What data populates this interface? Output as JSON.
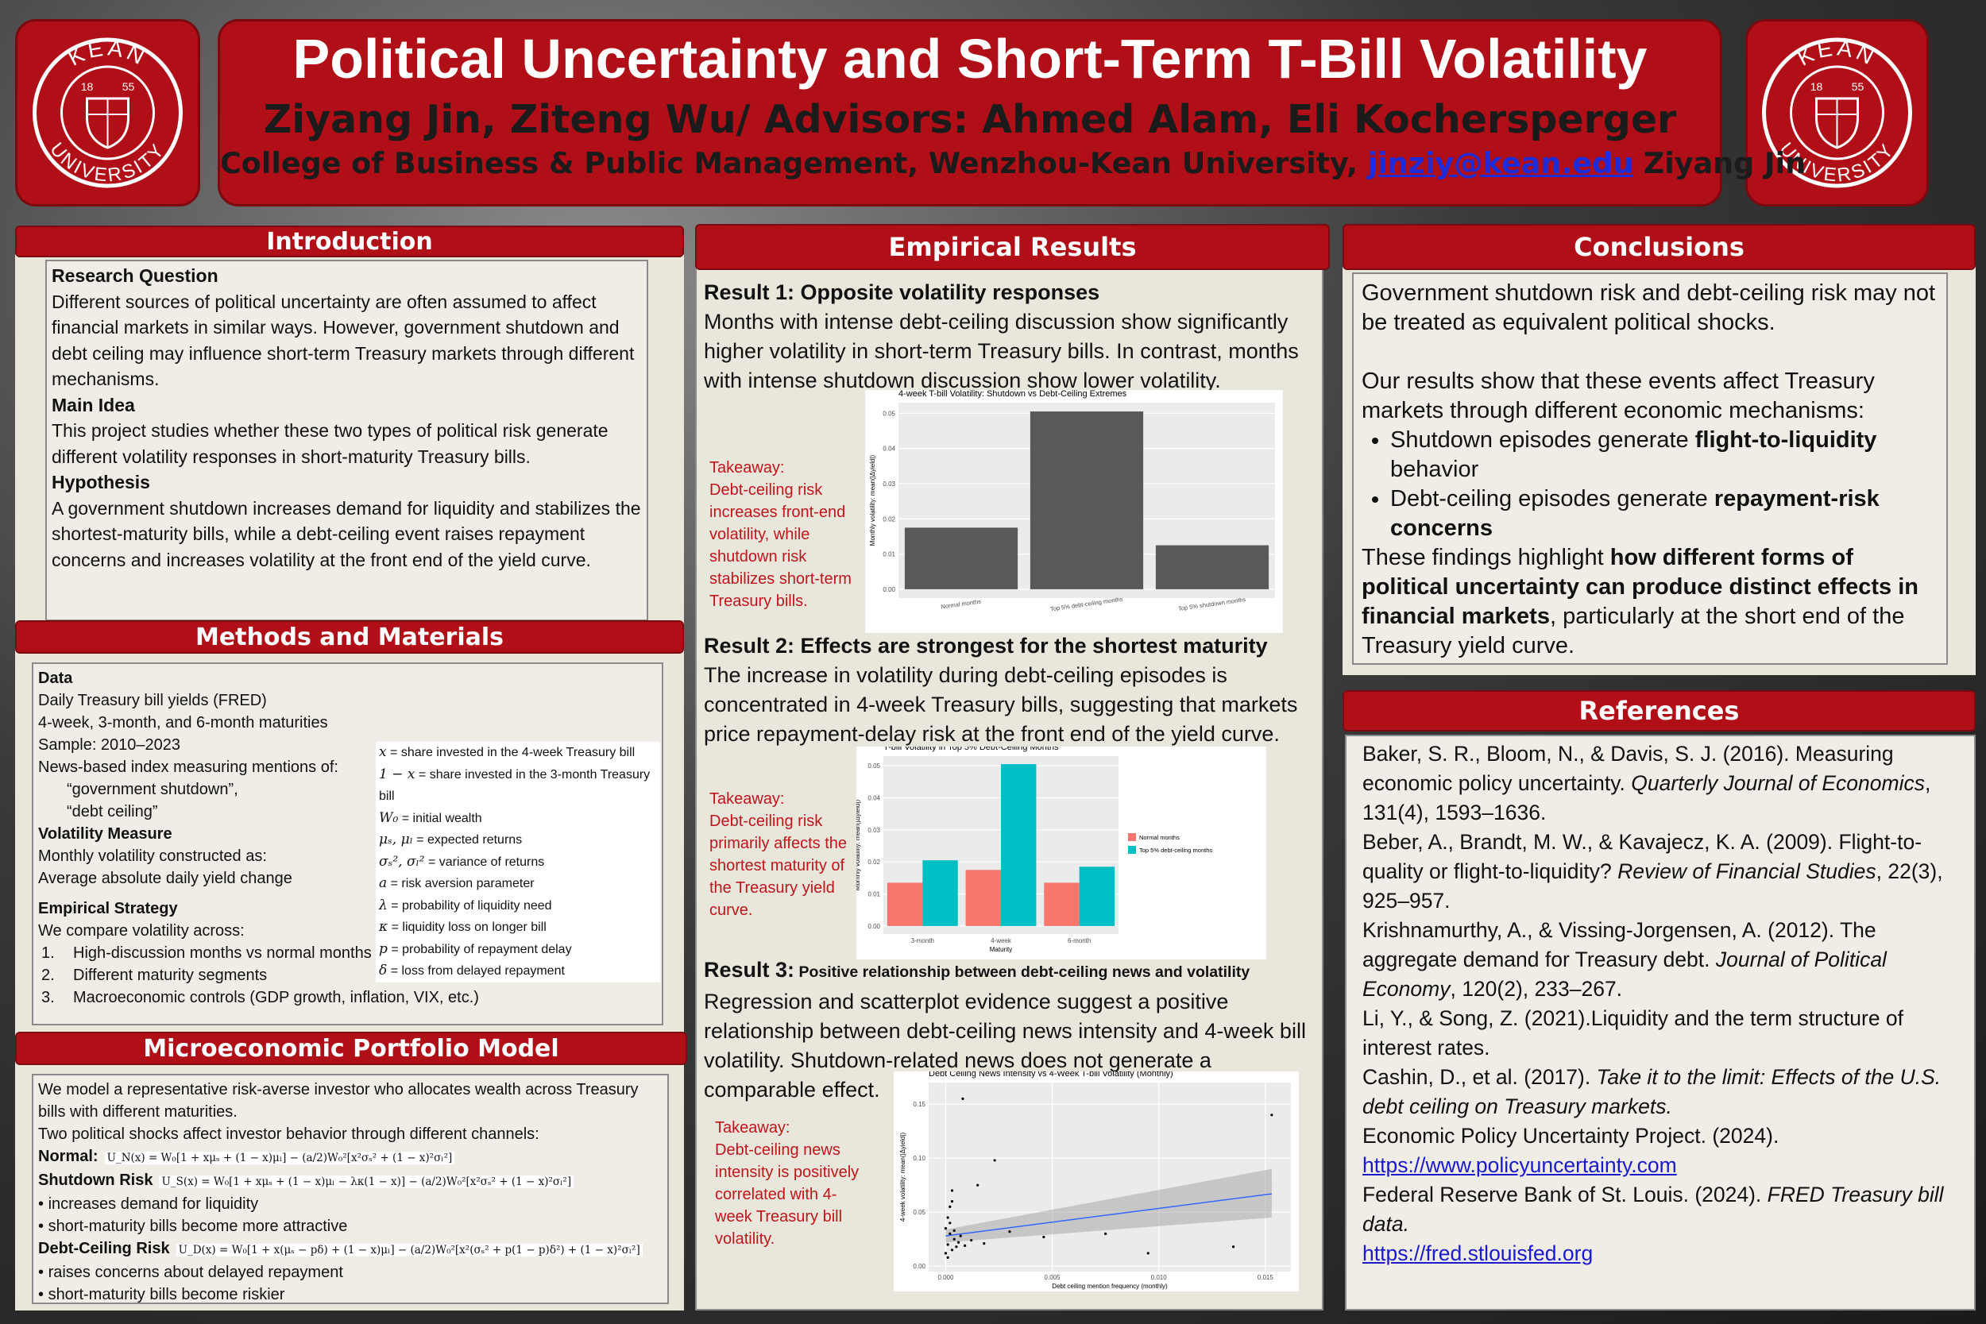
{
  "logo": {
    "top": "KEAN",
    "bottom": "UNIVERSITY",
    "year_left": "18",
    "year_right": "55"
  },
  "header": {
    "title": "Political Uncertainty and Short-Term T-Bill Volatility",
    "authors": "Ziyang Jin, Ziteng Wu/ Advisors: Ahmed Alam, Eli Kochersperger",
    "affiliation": "College of Business & Public Management, Wenzhou-Kean University, ",
    "email": "jinziy@kean.edu",
    "after_email": " Ziyang Jin"
  },
  "introduction": {
    "heading": "Introduction",
    "blocks": [
      {
        "label": "Research Question",
        "text": "Different sources of political uncertainty are often assumed to affect financial markets in similar ways. However, government shutdown and debt ceiling may influence short-term Treasury markets through different mechanisms."
      },
      {
        "label": "Main Idea",
        "text": "This project studies whether these two types of political risk generate different volatility responses in short-maturity Treasury bills."
      },
      {
        "label": "Hypothesis",
        "text": "A government shutdown increases demand for liquidity and stabilizes the shortest-maturity bills, while a debt-ceiling event raises repayment concerns and increases volatility at the front end of the yield curve."
      }
    ]
  },
  "methods": {
    "heading": "Methods and Materials",
    "data_label": "Data",
    "data_lines": [
      "Daily Treasury bill yields (FRED)",
      "4-week, 3-month, and 6-month maturities",
      "Sample: 2010–2023",
      "News-based index measuring mentions of:"
    ],
    "quoted": [
      "“government shutdown”,",
      "“debt ceiling”"
    ],
    "volatility_label": "Volatility Measure",
    "volatility_lines": [
      "Monthly volatility constructed as:",
      "Average absolute daily yield change"
    ],
    "strategy_label": "Empirical Strategy",
    "strategy_intro": "We compare volatility across:",
    "strategy_items": [
      {
        "num": "1.",
        "text": "High-discussion months vs normal months"
      },
      {
        "num": "2.",
        "text": "Different maturity segments"
      },
      {
        "num": "3.",
        "text": "Macroeconomic controls (GDP growth, inflation, VIX, etc.)"
      }
    ],
    "symbols": [
      {
        "sym": "x",
        "def": " = share invested in the 4-week Treasury bill"
      },
      {
        "sym": "1 − x",
        "def": " = share invested in the 3-month Treasury bill"
      },
      {
        "sym": "W₀",
        "def": " = initial wealth"
      },
      {
        "sym": "μₛ, μₗ",
        "def": " = expected returns"
      },
      {
        "sym": "σₛ², σₗ²",
        "def": " = variance of returns"
      },
      {
        "sym": "a",
        "def": " = risk aversion parameter"
      },
      {
        "sym": "λ",
        "def": " = probability of liquidity need"
      },
      {
        "sym": "κ",
        "def": " = liquidity loss on longer bill"
      },
      {
        "sym": "p",
        "def": " = probability of repayment delay"
      },
      {
        "sym": "δ",
        "def": " = loss from delayed repayment"
      }
    ]
  },
  "model": {
    "heading": "Microeconomic Portfolio Model",
    "intro": [
      "We model a representative risk-averse investor who allocates wealth across Treasury bills with different maturities.",
      "Two political shocks affect investor behavior through different channels:"
    ],
    "normal_label": "Normal:",
    "normal_formula": "U_N(x) = W₀[1 + xμₛ + (1 − x)μₗ] − (a/2)W₀²[x²σₛ² + (1 − x)²σₗ²]",
    "shutdown_label": "Shutdown Risk",
    "shutdown_formula": "U_S(x) = W₀[1 + xμₛ + (1 − x)μₗ − λκ(1 − x)] − (a/2)W₀²[x²σₛ² + (1 − x)²σₗ²]",
    "shutdown_bullets": [
      "increases demand for liquidity",
      "short-maturity bills become more attractive"
    ],
    "debt_label": "Debt-Ceiling Risk",
    "debt_formula": "U_D(x) = W₀[1 + x(μₛ − pδ) + (1 − x)μₗ] − (a/2)W₀²[x²(σₛ² + p(1 − p)δ²) + (1 − x)²σₗ²]",
    "debt_bullets": [
      "raises concerns about delayed repayment",
      "short-maturity bills become riskier"
    ]
  },
  "results": {
    "heading": "Empirical Results",
    "result1": {
      "label": "Result 1: Opposite volatility responses",
      "text": "Months with intense debt-ceiling discussion show significantly higher volatility in short-term Treasury bills. In contrast, months with intense shutdown discussion show lower volatility.",
      "takeaway_label": "Takeaway:",
      "takeaway": "Debt-ceiling risk increases front-end volatility, while shutdown risk stabilizes short-term Treasury bills.",
      "chart": {
        "type": "bar",
        "title": "4-week T-bill Volatility: Shutdown vs Debt-Ceiling Extremes",
        "y_label": "Monthly volatility: mean(|Δyield|)",
        "categories": [
          "Normal months",
          "Top 5% debt-ceiling months",
          "Top 5% shutdown months"
        ],
        "values": [
          0.0175,
          0.0505,
          0.0125
        ],
        "color": "#595959",
        "ylim": [
          -0.0025,
          0.053
        ],
        "yticks": [
          {
            "value": 0,
            "label": "0.00"
          },
          0.01,
          0.02,
          0.03,
          0.04,
          0.05
        ]
      }
    },
    "result2": {
      "label": "Result 2: Effects are strongest for the shortest maturity",
      "text": "The increase in volatility during debt-ceiling episodes is concentrated in 4-week Treasury bills, suggesting that markets price repayment-delay risk at the front end of the yield curve.",
      "takeaway_label": "Takeaway:",
      "takeaway": "Debt-ceiling risk primarily affects the shortest maturity of the Treasury yield curve.",
      "chart": {
        "type": "bar",
        "title": "T-bill Volatility in Top 5% Debt-Ceiling Months",
        "x_label": "Maturity",
        "y_label": "Monthly volatility: mean(|Δyield|)",
        "categories": [
          "3-month",
          "4-week",
          "6-month"
        ],
        "series": [
          {
            "name": "Normal months",
            "color": "#F8766D",
            "values": [
              0.0135,
              0.0175,
              0.0135
            ]
          },
          {
            "name": "Top 5% debt-ceiling months",
            "color": "#00BFC4",
            "values": [
              0.0205,
              0.0505,
              0.0185
            ]
          }
        ],
        "ylim": [
          -0.0025,
          0.053
        ],
        "yticks": [
          {
            "value": 0,
            "label": "0.00"
          },
          0.01,
          0.02,
          0.03,
          0.04,
          0.05
        ]
      }
    },
    "result3": {
      "label": "Result 3:",
      "label_rest": " Positive relationship between debt-ceiling news and volatility",
      "text": "Regression and scatterplot evidence suggest a positive relationship between debt-ceiling news intensity and 4-week bill volatility. Shutdown-related news does not generate a comparable effect.",
      "takeaway_label": "Takeaway:",
      "takeaway": "Debt-ceiling news intensity is positively correlated with 4-week Treasury bill volatility.",
      "chart": {
        "type": "scatter",
        "title": "Debt Ceiling News Intensity vs 4-Week T-bill Volatility (Monthly)",
        "x_label": "Debt ceiling mention frequency (monthly)",
        "y_label": "4-week volatility: mean(|Δyield|)",
        "x": [
          0.0,
          0.0001,
          0.0002,
          0.0003,
          0.0001,
          0.0004,
          0.0002,
          0.0005,
          0.0,
          0.0003,
          0.0006,
          0.0001,
          0.0002,
          0.0004,
          0.0007,
          0.0009,
          0.0012,
          0.0015,
          0.0023,
          0.003,
          0.0046,
          0.0075,
          0.0095,
          0.0135,
          0.0153,
          0.0008,
          0.0003,
          0.0018
        ],
        "values": [
          0.012,
          0.02,
          0.03,
          0.015,
          0.045,
          0.025,
          0.055,
          0.018,
          0.035,
          0.06,
          0.022,
          0.008,
          0.04,
          0.033,
          0.028,
          0.019,
          0.024,
          0.075,
          0.098,
          0.032,
          0.027,
          0.03,
          0.012,
          0.018,
          0.14,
          0.155,
          0.07,
          0.021
        ],
        "color": "#000000",
        "trend": {
          "x": [
            0.0,
            0.0153
          ],
          "values": [
            0.028,
            0.067
          ],
          "lower": [
            0.022,
            0.045
          ],
          "upper": [
            0.034,
            0.09
          ],
          "color": "#3366FF"
        },
        "xlim": [
          -0.0008,
          0.0162
        ],
        "xticks": [
          {
            "value": 0,
            "label": "0.000"
          },
          0.005,
          {
            "value": 0.01,
            "label": "0.010"
          },
          0.015
        ],
        "ylim": [
          -0.005,
          0.17
        ],
        "yticks": [
          {
            "value": 0,
            "label": "0.00"
          },
          0.05,
          {
            "value": 0.1,
            "label": "0.10"
          },
          0.15
        ]
      }
    }
  },
  "conclusions": {
    "heading": "Conclusions",
    "blocks": [
      {
        "kind": "p",
        "parts": [
          {
            "text": "Government shutdown risk and debt-ceiling risk may not be treated as equivalent political shocks."
          }
        ]
      },
      {
        "kind": "p",
        "parts": [
          {
            "text": "Our results show that these events affect Treasury markets through different economic mechanisms:"
          }
        ]
      },
      {
        "kind": "ul",
        "items": [
          {
            "parts": [
              {
                "text": "Shutdown episodes generate "
              },
              {
                "text": "flight-to-liquidity",
                "style": "bold"
              },
              {
                "text": " behavior"
              }
            ]
          },
          {
            "parts": [
              {
                "text": "Debt-ceiling episodes generate "
              },
              {
                "text": "repayment-risk concerns",
                "style": "bold"
              }
            ]
          }
        ]
      },
      {
        "kind": "p",
        "parts": [
          {
            "text": "These findings highlight "
          },
          {
            "text": "how different forms of political uncertainty can produce distinct effects in financial markets",
            "style": "bold"
          },
          {
            "text": ", particularly at the short end of the Treasury yield curve."
          }
        ]
      }
    ]
  },
  "references": {
    "heading": "References",
    "items": [
      {
        "parts": [
          {
            "text": "Baker, S. R., Bloom, N., & Davis, S. J. (2016). Measuring economic policy uncertainty. "
          },
          {
            "text": "Quarterly Journal of Economics",
            "style": "italic"
          },
          {
            "text": ", 131(4), 1593–1636."
          }
        ]
      },
      {
        "parts": [
          {
            "text": "Beber, A., Brandt, M. W., & Kavajecz, K. A. (2009). Flight-to-quality or flight-to-liquidity? "
          },
          {
            "text": "Review of Financial Studies",
            "style": "italic"
          },
          {
            "text": ", 22(3), 925–957."
          }
        ]
      },
      {
        "parts": [
          {
            "text": "Krishnamurthy, A., & Vissing-Jorgensen, A. (2012). The aggregate demand for Treasury debt. "
          },
          {
            "text": "Journal of Political Economy",
            "style": "italic"
          },
          {
            "text": ", 120(2), 233–267."
          }
        ]
      },
      {
        "parts": [
          {
            "text": "Li, Y., & Song, Z. (2021).Liquidity and the term structure of interest rates."
          }
        ]
      },
      {
        "parts": [
          {
            "text": "Cashin, D., et al. (2017). "
          },
          {
            "text": "Take it to the limit: Effects of the U.S. debt ceiling on Treasury markets.",
            "style": "italic"
          }
        ]
      },
      {
        "parts": [
          {
            "text": "Economic Policy Uncertainty Project. (2024). "
          },
          {
            "text": "https://www.policyuncertainty.com",
            "style": "link"
          }
        ]
      },
      {
        "parts": [
          {
            "text": "Federal Reserve Bank of St. Louis. (2024). "
          },
          {
            "text": "FRED Treasury bill data.",
            "style": "italic"
          },
          {
            "text": "https://fred.stlouisfed.org",
            "style": "link"
          }
        ]
      }
    ]
  }
}
